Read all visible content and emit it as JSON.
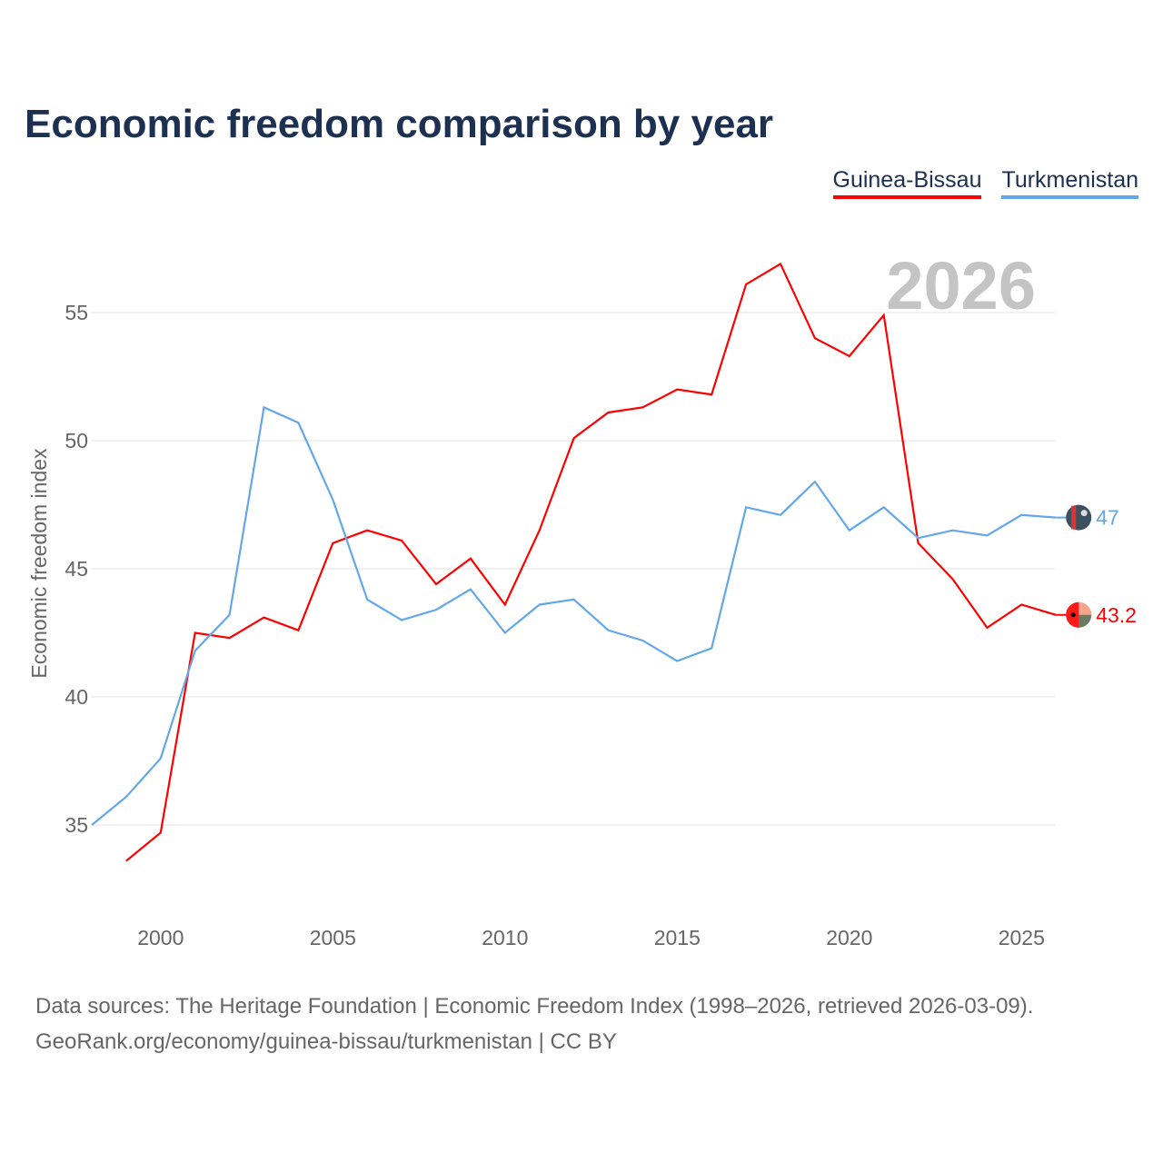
{
  "title": "Economic freedom comparison by year",
  "year_watermark": "2026",
  "source_lines": [
    "Data sources: The Heritage Foundation | Economic Freedom Index (1998–2026, retrieved 2026-03-09).",
    "GeoRank.org/economy/guinea-bissau/turkmenistan | CC BY"
  ],
  "chart_data": {
    "type": "line",
    "title": "Economic freedom comparison by year",
    "xlabel": "",
    "ylabel": "Economic freedom index",
    "xlim": [
      1998,
      2026
    ],
    "ylim": [
      31.5,
      58
    ],
    "xticks": [
      2000,
      2005,
      2010,
      2015,
      2020,
      2025
    ],
    "yticks": [
      35,
      40,
      45,
      50,
      55
    ],
    "grid": true,
    "legend": "top-right",
    "series": [
      {
        "name": "Guinea-Bissau",
        "color": "#ff0000",
        "end_label": "43.2",
        "x": [
          1999,
          2000,
          2001,
          2002,
          2003,
          2004,
          2005,
          2006,
          2007,
          2008,
          2009,
          2010,
          2011,
          2012,
          2013,
          2014,
          2015,
          2016,
          2017,
          2018,
          2019,
          2020,
          2021,
          2022,
          2023,
          2024,
          2025,
          2026
        ],
        "values": [
          33.6,
          34.7,
          42.5,
          42.3,
          43.1,
          42.6,
          46.0,
          46.5,
          46.1,
          44.4,
          45.4,
          43.6,
          46.5,
          50.1,
          51.1,
          51.3,
          52.0,
          51.8,
          56.1,
          56.9,
          54.0,
          53.3,
          54.9,
          46.0,
          44.6,
          42.7,
          43.6,
          43.2
        ]
      },
      {
        "name": "Turkmenistan",
        "color": "#63a7ea",
        "end_label": "47",
        "x": [
          1998,
          1999,
          2000,
          2001,
          2002,
          2003,
          2004,
          2005,
          2006,
          2007,
          2008,
          2009,
          2010,
          2011,
          2012,
          2013,
          2014,
          2015,
          2016,
          2017,
          2018,
          2019,
          2020,
          2021,
          2022,
          2023,
          2024,
          2025,
          2026
        ],
        "values": [
          35.0,
          36.1,
          37.6,
          41.8,
          43.2,
          51.3,
          50.7,
          47.7,
          43.8,
          43.0,
          43.4,
          44.2,
          42.5,
          43.6,
          43.8,
          42.6,
          42.2,
          41.4,
          41.9,
          47.4,
          47.1,
          48.4,
          46.5,
          47.4,
          46.2,
          46.5,
          46.3,
          47.1,
          47.0
        ]
      }
    ]
  }
}
